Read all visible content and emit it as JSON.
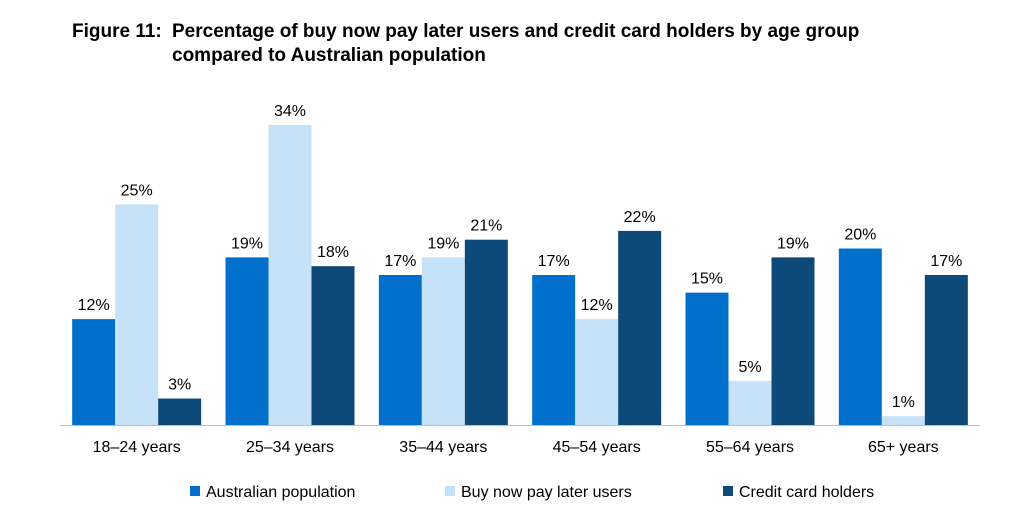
{
  "figure": {
    "label": "Figure 11:",
    "title": "Percentage of buy now pay later users and credit card holders by age group compared to Australian population"
  },
  "chart_data": {
    "type": "bar",
    "categories": [
      "18–24 years",
      "25–34 years",
      "35–44 years",
      "45–54 years",
      "55–64 years",
      "65+ years"
    ],
    "series": [
      {
        "name": "Australian population",
        "color": "#0070cc",
        "values": [
          12,
          19,
          17,
          17,
          15,
          20
        ],
        "labels": [
          "12%",
          "19%",
          "17%",
          "17%",
          "15%",
          "20%"
        ]
      },
      {
        "name": "Buy now pay later users",
        "color": "#c6e2f8",
        "values": [
          25,
          34,
          19,
          12,
          5,
          1
        ],
        "labels": [
          "25%",
          "34%",
          "19%",
          "12%",
          "5%",
          "1%"
        ]
      },
      {
        "name": "Credit card holders",
        "color": "#0d4a7a",
        "values": [
          3,
          18,
          21,
          22,
          19,
          17
        ],
        "labels": [
          "3%",
          "18%",
          "21%",
          "22%",
          "19%",
          "17%"
        ]
      }
    ],
    "ylim": [
      0,
      34
    ],
    "grid": false,
    "legend": "bottom"
  }
}
